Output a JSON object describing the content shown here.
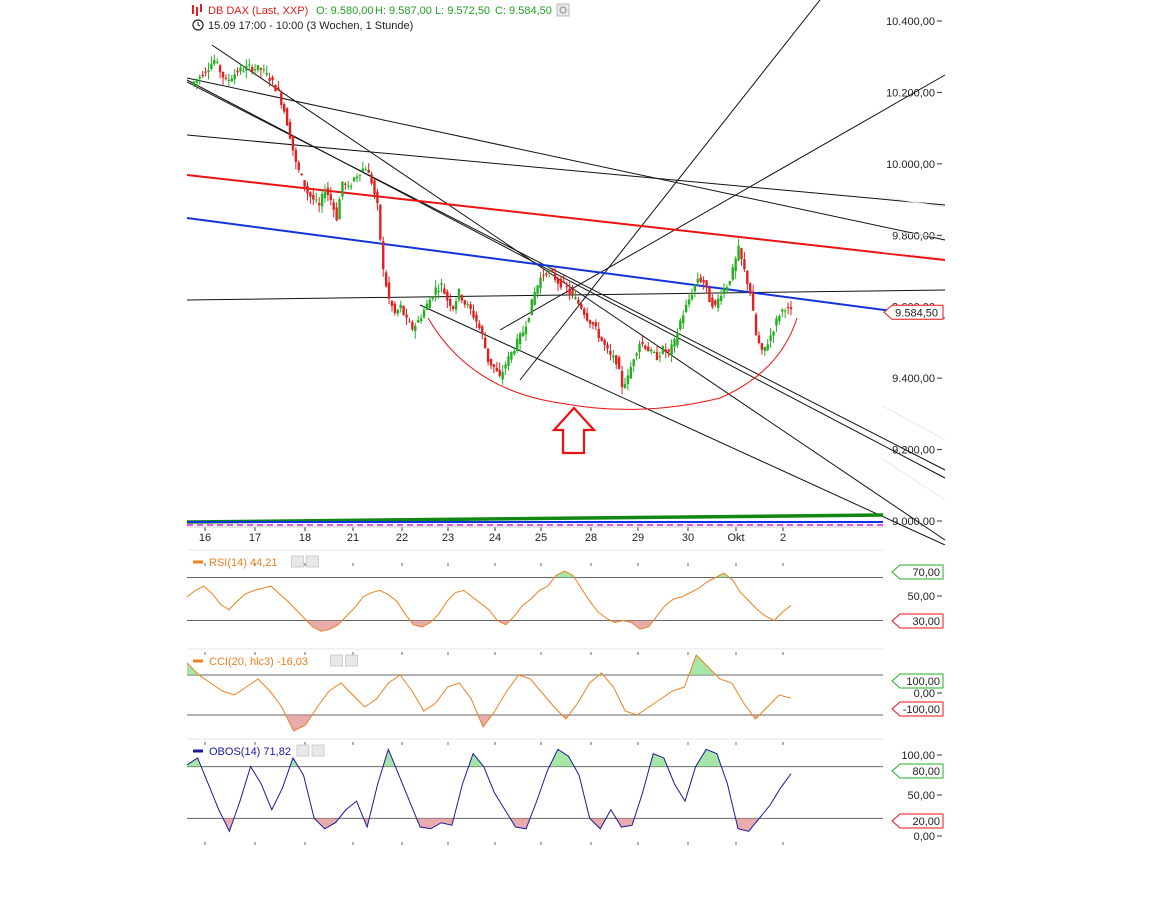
{
  "header": {
    "instrument": "DB DAX (Last, XXP)",
    "open": "O: 9.580,00",
    "high": "H: 9.587,00",
    "low": "L: 9.572,50",
    "close": "C: 9.584,50",
    "period": "15.09 17:00 - 10:00 (3 Wochen, 1 Stunde)"
  },
  "colors": {
    "up": "#22b022",
    "down": "#e02020",
    "red_line": "#ee1111",
    "blue_line": "#1133dd",
    "green_line": "#118811",
    "magenta_line": "#dd22dd",
    "rsi": "#f08020",
    "cci": "#f08020",
    "obos": "#1a1aa0",
    "overbought_fill": "#88dd88",
    "oversold_fill": "#e09090"
  },
  "chart_data": [
    {
      "type": "candlestick",
      "title": "DB DAX (Last, XXP)",
      "y_axis_labels": [
        "10.400,00",
        "10.200,00",
        "10.000,00",
        "9.800,00",
        "9.600,00",
        "9.400,00",
        "9.200,00",
        "9.000,00"
      ],
      "ylim": [
        8980,
        10460
      ],
      "x_tick_labels": [
        "16",
        "17",
        "18",
        "21",
        "22",
        "23",
        "24",
        "25",
        "28",
        "29",
        "30",
        "Okt",
        "2"
      ],
      "last_price_label": "9.584,50",
      "last_price": 9584.5,
      "close_path": [
        [
          0,
          10220
        ],
        [
          4,
          10255
        ],
        [
          8,
          10290
        ],
        [
          12,
          10230
        ],
        [
          16,
          10260
        ],
        [
          20,
          10270
        ],
        [
          24,
          10265
        ],
        [
          27,
          10240
        ],
        [
          30,
          10200
        ],
        [
          32,
          10150
        ],
        [
          34,
          10080
        ],
        [
          36,
          10000
        ],
        [
          38,
          9960
        ],
        [
          40,
          9920
        ],
        [
          42,
          9900
        ],
        [
          44,
          9880
        ],
        [
          46,
          9930
        ],
        [
          48,
          9900
        ],
        [
          50,
          9850
        ],
        [
          52,
          9950
        ],
        [
          54,
          9930
        ],
        [
          56,
          9960
        ],
        [
          58,
          9980
        ],
        [
          60,
          9990
        ],
        [
          62,
          9950
        ],
        [
          64,
          9880
        ],
        [
          66,
          9700
        ],
        [
          68,
          9620
        ],
        [
          70,
          9580
        ],
        [
          72,
          9600
        ],
        [
          74,
          9560
        ],
        [
          76,
          9540
        ],
        [
          78,
          9560
        ],
        [
          80,
          9590
        ],
        [
          82,
          9620
        ],
        [
          84,
          9650
        ],
        [
          86,
          9660
        ],
        [
          88,
          9620
        ],
        [
          90,
          9600
        ],
        [
          92,
          9640
        ],
        [
          94,
          9610
        ],
        [
          96,
          9590
        ],
        [
          98,
          9560
        ],
        [
          100,
          9520
        ],
        [
          102,
          9450
        ],
        [
          104,
          9430
        ],
        [
          106,
          9400
        ],
        [
          108,
          9440
        ],
        [
          110,
          9470
        ],
        [
          112,
          9500
        ],
        [
          114,
          9530
        ],
        [
          116,
          9580
        ],
        [
          118,
          9640
        ],
        [
          120,
          9680
        ],
        [
          122,
          9700
        ],
        [
          124,
          9690
        ],
        [
          126,
          9670
        ],
        [
          128,
          9660
        ],
        [
          130,
          9640
        ],
        [
          132,
          9620
        ],
        [
          134,
          9600
        ],
        [
          136,
          9570
        ],
        [
          138,
          9550
        ],
        [
          140,
          9520
        ],
        [
          142,
          9490
        ],
        [
          144,
          9460
        ],
        [
          146,
          9450
        ],
        [
          148,
          9380
        ],
        [
          150,
          9400
        ],
        [
          152,
          9460
        ],
        [
          154,
          9500
        ],
        [
          156,
          9490
        ],
        [
          158,
          9470
        ],
        [
          160,
          9460
        ],
        [
          162,
          9480
        ],
        [
          164,
          9470
        ],
        [
          166,
          9500
        ],
        [
          168,
          9560
        ],
        [
          170,
          9600
        ],
        [
          172,
          9640
        ],
        [
          174,
          9680
        ],
        [
          176,
          9670
        ],
        [
          178,
          9620
        ],
        [
          180,
          9600
        ],
        [
          182,
          9640
        ],
        [
          184,
          9660
        ],
        [
          186,
          9700
        ],
        [
          188,
          9760
        ],
        [
          190,
          9700
        ],
        [
          192,
          9640
        ],
        [
          194,
          9520
        ],
        [
          196,
          9470
        ],
        [
          198,
          9500
        ],
        [
          200,
          9540
        ],
        [
          202,
          9580
        ],
        [
          204,
          9600
        ],
        [
          206,
          9584.5
        ]
      ],
      "annotations": [
        "red rounding-bottom arc",
        "red up-arrow",
        "trend lines",
        "horizontal red resistance line",
        "blue trend line",
        "green support line",
        "magenta dashed support line"
      ]
    },
    {
      "type": "line",
      "name": "RSI(14)",
      "legend": "RSI(14)",
      "current_label": "44,21",
      "ylim": [
        10,
        90
      ],
      "level_labels": [
        "70,00",
        "50,00",
        "30,00"
      ],
      "levels": [
        70,
        50,
        30
      ],
      "values": [
        52,
        58,
        62,
        55,
        45,
        40,
        48,
        55,
        58,
        60,
        62,
        55,
        48,
        40,
        32,
        24,
        20,
        22,
        26,
        34,
        42,
        52,
        56,
        58,
        54,
        48,
        36,
        26,
        24,
        28,
        36,
        48,
        56,
        58,
        52,
        46,
        40,
        30,
        26,
        34,
        44,
        50,
        58,
        62,
        72,
        76,
        72,
        60,
        48,
        38,
        32,
        28,
        30,
        28,
        22,
        24,
        34,
        44,
        50,
        52,
        56,
        60,
        66,
        70,
        74,
        68,
        56,
        48,
        40,
        34,
        30,
        38,
        44
      ]
    },
    {
      "type": "line",
      "name": "CCI(20, hlc3)",
      "legend": "CCI(20, hlc3)",
      "current_label": "-16,03",
      "ylim": [
        -200,
        200
      ],
      "level_labels": [
        "100,00",
        "0,00",
        "-100,00"
      ],
      "levels": [
        100,
        0,
        -100
      ],
      "values": [
        160,
        100,
        60,
        20,
        0,
        40,
        80,
        20,
        -60,
        -180,
        -150,
        -60,
        20,
        60,
        0,
        -60,
        -20,
        60,
        100,
        20,
        -80,
        -40,
        40,
        60,
        -20,
        -160,
        -80,
        20,
        100,
        80,
        10,
        -60,
        -120,
        -40,
        60,
        110,
        40,
        -80,
        -100,
        -60,
        -20,
        20,
        40,
        200,
        140,
        80,
        60,
        -40,
        -120,
        -60,
        0,
        -16
      ]
    },
    {
      "type": "line",
      "name": "OBOS(14)",
      "legend": "OBOS(14)",
      "current_label": "71,82",
      "ylim": [
        -5,
        105
      ],
      "level_labels": [
        "100,00",
        "80,00",
        "50,00",
        "20,00",
        "0,00"
      ],
      "levels": [
        100,
        80,
        50,
        20,
        0
      ],
      "values": [
        82,
        90,
        60,
        30,
        5,
        40,
        80,
        60,
        30,
        55,
        90,
        70,
        20,
        8,
        15,
        30,
        40,
        10,
        60,
        100,
        70,
        40,
        10,
        8,
        15,
        12,
        60,
        95,
        80,
        50,
        30,
        10,
        8,
        40,
        75,
        100,
        92,
        70,
        20,
        8,
        30,
        10,
        12,
        50,
        95,
        90,
        60,
        40,
        80,
        100,
        95,
        60,
        8,
        5,
        20,
        35,
        55,
        71.82
      ]
    }
  ]
}
